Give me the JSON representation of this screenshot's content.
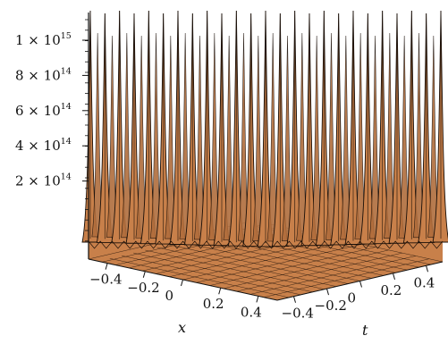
{
  "chart_data": {
    "type": "surface3d",
    "title": "",
    "surface_color": "#c8804a",
    "mesh_color": "#1a0f08",
    "z_axis": {
      "ticks": [
        {
          "mantissa": "2 × 10",
          "exp": "14",
          "value": 200000000000000.0
        },
        {
          "mantissa": "4 × 10",
          "exp": "14",
          "value": 400000000000000.0
        },
        {
          "mantissa": "6 × 10",
          "exp": "14",
          "value": 600000000000000.0
        },
        {
          "mantissa": "8 × 10",
          "exp": "14",
          "value": 800000000000000.0
        },
        {
          "mantissa": "1 × 10",
          "exp": "15",
          "value": 1000000000000000.0
        }
      ]
    },
    "x_axis": {
      "label": "x",
      "range": [
        -0.5,
        0.5
      ],
      "tick_labels": [
        "−0.4",
        "−0.2",
        "0",
        "0.2",
        "0.4"
      ],
      "tick_values": [
        -0.4,
        -0.2,
        0,
        0.2,
        0.4
      ]
    },
    "t_axis": {
      "label": "t",
      "range": [
        -0.5,
        0.5
      ],
      "tick_labels": [
        "−0.4",
        "−0.2",
        "0",
        "0.2",
        "0.4"
      ],
      "tick_values": [
        -0.4,
        -0.2,
        0,
        0.2,
        0.4
      ]
    },
    "spike_count": 25
  }
}
